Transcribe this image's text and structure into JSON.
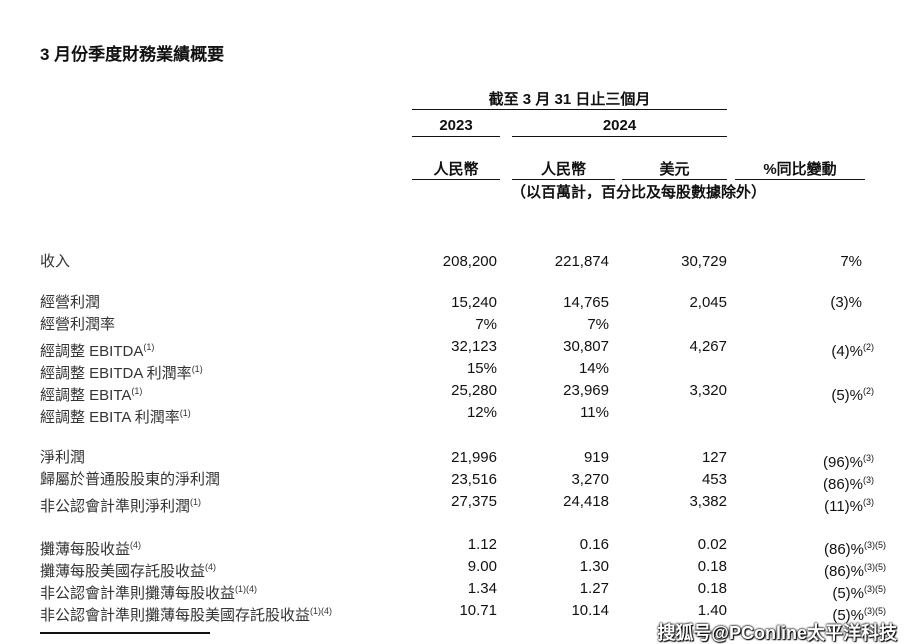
{
  "title": "3 月份季度財務業績概要",
  "header": {
    "period": "截至 3 月 31 日止三個月",
    "year_2023": "2023",
    "year_2024": "2024",
    "currency": [
      "人民幣",
      "人民幣",
      "美元",
      "%同比變動"
    ],
    "note": "（以百萬計，百分比及每股數據除外）"
  },
  "rows": [
    {
      "label": "收入",
      "sup": "",
      "v": [
        "208,200",
        "221,874",
        "30,729",
        "7%"
      ],
      "vsup": ""
    },
    {
      "label": "經營利潤",
      "sup": "",
      "v": [
        "15,240",
        "14,765",
        "2,045",
        "(3)%"
      ],
      "vsup": ""
    },
    {
      "label": "經營利潤率",
      "sup": "",
      "v": [
        "7%",
        "7%",
        "",
        ""
      ],
      "vsup": ""
    },
    {
      "label": "經調整 EBITDA",
      "sup": "(1)",
      "v": [
        "32,123",
        "30,807",
        "4,267",
        "(4)%"
      ],
      "vsup": "(2)"
    },
    {
      "label": "經調整 EBITDA 利潤率",
      "sup": "(1)",
      "v": [
        "15%",
        "14%",
        "",
        ""
      ],
      "vsup": ""
    },
    {
      "label": "經調整 EBITA",
      "sup": "(1)",
      "v": [
        "25,280",
        "23,969",
        "3,320",
        "(5)%"
      ],
      "vsup": "(2)"
    },
    {
      "label": "經調整 EBITA 利潤率",
      "sup": "(1)",
      "v": [
        "12%",
        "11%",
        "",
        ""
      ],
      "vsup": ""
    },
    {
      "label": "淨利潤",
      "sup": "",
      "v": [
        "21,996",
        "919",
        "127",
        "(96)%"
      ],
      "vsup": "(3)"
    },
    {
      "label": "歸屬於普通股股東的淨利潤",
      "sup": "",
      "v": [
        "23,516",
        "3,270",
        "453",
        "(86)%"
      ],
      "vsup": "(3)"
    },
    {
      "label": "非公認會計準則淨利潤",
      "sup": "(1)",
      "v": [
        "27,375",
        "24,418",
        "3,382",
        "(11)%"
      ],
      "vsup": "(3)"
    },
    {
      "label": "攤薄每股收益",
      "sup": "(4)",
      "v": [
        "1.12",
        "0.16",
        "0.02",
        "(86)%"
      ],
      "vsup": "(3)(5)"
    },
    {
      "label": "攤薄每股美國存託股收益",
      "sup": "(4)",
      "v": [
        "9.00",
        "1.30",
        "0.18",
        "(86)%"
      ],
      "vsup": "(3)(5)"
    },
    {
      "label": "非公認會計準則攤薄每股收益",
      "sup": "(1)(4)",
      "v": [
        "1.34",
        "1.27",
        "0.18",
        "(5)%"
      ],
      "vsup": "(3)(5)"
    },
    {
      "label": "非公認會計準則攤薄每股美國存託股收益",
      "sup": "(1)(4)",
      "v": [
        "10.71",
        "10.14",
        "1.40",
        "(5)%"
      ],
      "vsup": "(3)(5)"
    }
  ],
  "watermark": "搜狐号@PConline太平洋科技"
}
